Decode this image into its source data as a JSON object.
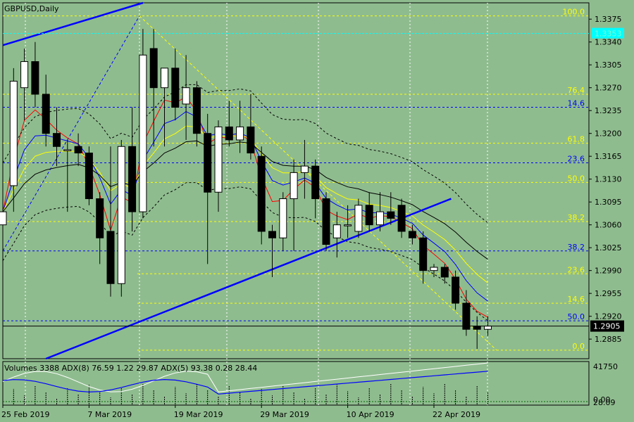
{
  "title": "GBPUSD,Daily",
  "indicator_title": "Volumes 3388 ADX(8) 76.59 1.22 29.87 ADX(5) 93.38 0.28 28.44",
  "current_price": "1.2905",
  "highlight_price": "1.3353",
  "colors": {
    "background": "#8fbc8f",
    "candle_up": "#ffffff",
    "candle_down": "#000000",
    "trendline": "#0000ff",
    "fib_yellow": "#ffff00",
    "fib_blue": "#0000ff",
    "ma_red": "#ff0000",
    "ma_blue": "#0000ff",
    "ma_yellow": "#ffff00",
    "ma_black": "#000000",
    "highlight": "#00ffff"
  },
  "chart_data": {
    "type": "candlestick",
    "symbol": "GBPUSD",
    "timeframe": "Daily",
    "y_range": [
      1.2855,
      1.34
    ],
    "price_ticks": [
      "1.3375",
      "1.3340",
      "1.3305",
      "1.3270",
      "1.3235",
      "1.3200",
      "1.3165",
      "1.3130",
      "1.3095",
      "1.3060",
      "1.3025",
      "1.2990",
      "1.2955",
      "1.2920",
      "1.2885"
    ],
    "date_labels": [
      {
        "text": "25 Feb 2019",
        "index": 0
      },
      {
        "text": "7 Mar 2019",
        "index": 8
      },
      {
        "text": "19 Mar 2019",
        "index": 16
      },
      {
        "text": "29 Mar 2019",
        "index": 24
      },
      {
        "text": "10 Apr 2019",
        "index": 32
      },
      {
        "text": "22 Apr 2019",
        "index": 40
      }
    ],
    "candles": [
      {
        "o": 1.306,
        "h": 1.316,
        "l": 1.299,
        "c": 1.308
      },
      {
        "o": 1.312,
        "h": 1.33,
        "l": 1.308,
        "c": 1.328
      },
      {
        "o": 1.327,
        "h": 1.333,
        "l": 1.322,
        "c": 1.331
      },
      {
        "o": 1.331,
        "h": 1.334,
        "l": 1.324,
        "c": 1.326
      },
      {
        "o": 1.326,
        "h": 1.329,
        "l": 1.318,
        "c": 1.32
      },
      {
        "o": 1.32,
        "h": 1.324,
        "l": 1.315,
        "c": 1.318
      },
      {
        "o": 1.3175,
        "h": 1.319,
        "l": 1.308,
        "c": 1.3175
      },
      {
        "o": 1.318,
        "h": 1.32,
        "l": 1.315,
        "c": 1.317
      },
      {
        "o": 1.317,
        "h": 1.318,
        "l": 1.309,
        "c": 1.31
      },
      {
        "o": 1.31,
        "h": 1.311,
        "l": 1.3,
        "c": 1.304
      },
      {
        "o": 1.305,
        "h": 1.318,
        "l": 1.295,
        "c": 1.297
      },
      {
        "o": 1.297,
        "h": 1.319,
        "l": 1.295,
        "c": 1.318
      },
      {
        "o": 1.318,
        "h": 1.324,
        "l": 1.305,
        "c": 1.308
      },
      {
        "o": 1.308,
        "h": 1.336,
        "l": 1.307,
        "c": 1.332
      },
      {
        "o": 1.333,
        "h": 1.336,
        "l": 1.318,
        "c": 1.327
      },
      {
        "o": 1.327,
        "h": 1.33,
        "l": 1.318,
        "c": 1.33
      },
      {
        "o": 1.33,
        "h": 1.333,
        "l": 1.322,
        "c": 1.324
      },
      {
        "o": 1.3245,
        "h": 1.332,
        "l": 1.319,
        "c": 1.327
      },
      {
        "o": 1.327,
        "h": 1.328,
        "l": 1.318,
        "c": 1.32
      },
      {
        "o": 1.32,
        "h": 1.323,
        "l": 1.3,
        "c": 1.311
      },
      {
        "o": 1.311,
        "h": 1.322,
        "l": 1.308,
        "c": 1.321
      },
      {
        "o": 1.321,
        "h": 1.325,
        "l": 1.318,
        "c": 1.319
      },
      {
        "o": 1.319,
        "h": 1.325,
        "l": 1.317,
        "c": 1.321
      },
      {
        "o": 1.321,
        "h": 1.326,
        "l": 1.316,
        "c": 1.317
      },
      {
        "o": 1.3165,
        "h": 1.318,
        "l": 1.303,
        "c": 1.305
      },
      {
        "o": 1.305,
        "h": 1.306,
        "l": 1.298,
        "c": 1.304
      },
      {
        "o": 1.304,
        "h": 1.311,
        "l": 1.302,
        "c": 1.31
      },
      {
        "o": 1.31,
        "h": 1.316,
        "l": 1.302,
        "c": 1.314
      },
      {
        "o": 1.314,
        "h": 1.319,
        "l": 1.31,
        "c": 1.315
      },
      {
        "o": 1.315,
        "h": 1.316,
        "l": 1.307,
        "c": 1.31
      },
      {
        "o": 1.31,
        "h": 1.311,
        "l": 1.302,
        "c": 1.303
      },
      {
        "o": 1.304,
        "h": 1.308,
        "l": 1.301,
        "c": 1.306
      },
      {
        "o": 1.306,
        "h": 1.309,
        "l": 1.304,
        "c": 1.306
      },
      {
        "o": 1.305,
        "h": 1.31,
        "l": 1.304,
        "c": 1.309
      },
      {
        "o": 1.309,
        "h": 1.311,
        "l": 1.305,
        "c": 1.306
      },
      {
        "o": 1.306,
        "h": 1.311,
        "l": 1.305,
        "c": 1.308
      },
      {
        "o": 1.308,
        "h": 1.311,
        "l": 1.306,
        "c": 1.307
      },
      {
        "o": 1.309,
        "h": 1.31,
        "l": 1.304,
        "c": 1.305
      },
      {
        "o": 1.305,
        "h": 1.306,
        "l": 1.303,
        "c": 1.304
      },
      {
        "o": 1.304,
        "h": 1.305,
        "l": 1.297,
        "c": 1.299
      },
      {
        "o": 1.299,
        "h": 1.3,
        "l": 1.298,
        "c": 1.2995
      },
      {
        "o": 1.2995,
        "h": 1.3,
        "l": 1.297,
        "c": 1.298
      },
      {
        "o": 1.298,
        "h": 1.299,
        "l": 1.293,
        "c": 1.294
      },
      {
        "o": 1.294,
        "h": 1.296,
        "l": 1.289,
        "c": 1.29
      },
      {
        "o": 1.2905,
        "h": 1.292,
        "l": 1.287,
        "c": 1.29
      },
      {
        "o": 1.29,
        "h": 1.292,
        "l": 1.289,
        "c": 1.2905
      }
    ],
    "fib_levels_upper": [
      {
        "text": "100.0",
        "price": 1.338
      },
      {
        "text": "76.4",
        "price": 1.326
      },
      {
        "text": "61.8",
        "price": 1.3185
      },
      {
        "text": "50.0",
        "price": 1.3125
      },
      {
        "text": "38.2",
        "price": 1.3065
      }
    ],
    "fib_levels_lower": [
      {
        "text": "23.6",
        "price": 1.2985
      },
      {
        "text": "14.6",
        "price": 1.294
      },
      {
        "text": "0.0",
        "price": 1.2868
      }
    ],
    "fib_blue_levels": [
      {
        "text": "14.6",
        "price": 1.324
      },
      {
        "text": "23.6",
        "price": 1.3155
      },
      {
        "text": "38.2",
        "price": 1.302
      },
      {
        "text": "50.0",
        "price": 1.2913
      }
    ],
    "indicator_scale": [
      "41750",
      "0.00",
      "28.09"
    ]
  }
}
